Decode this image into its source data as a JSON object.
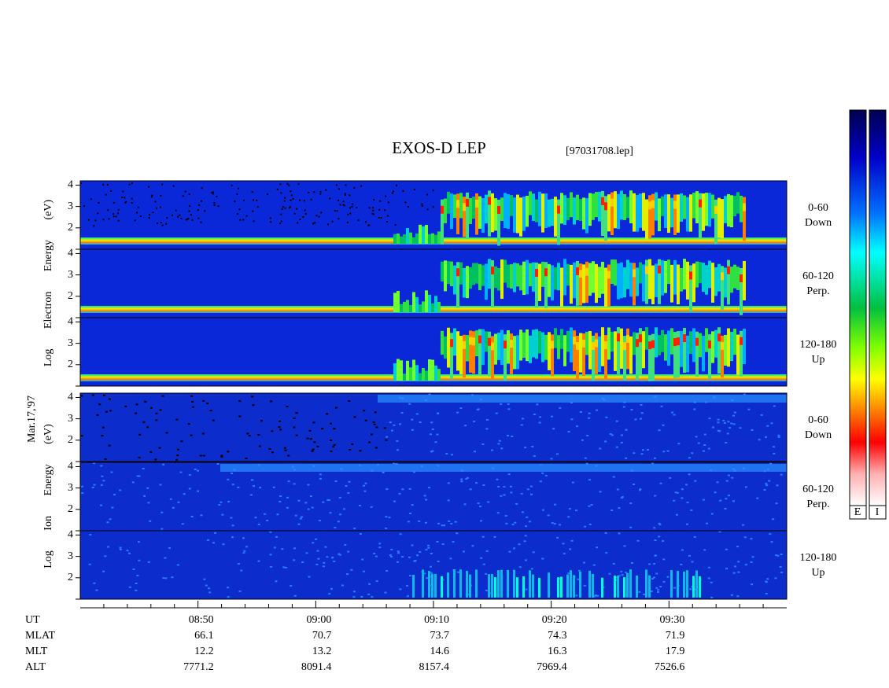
{
  "chart_data": {
    "type": "spectrogram",
    "title": "EXOS-D LEP",
    "file": "[97031708.lep]",
    "date": "Mar.17,'97",
    "electron_axis_label": "Log Electron Energy (eV)",
    "ion_axis_label": "Log Ion Energy (eV)",
    "ylim": [
      1,
      4.2
    ],
    "yticks": [
      2,
      3,
      4
    ],
    "xlim": [
      520,
      580
    ],
    "xticks": [
      {
        "value": 530,
        "label": "08:50"
      },
      {
        "value": 540,
        "label": "09:00"
      },
      {
        "value": 550,
        "label": "09:10"
      },
      {
        "value": 560,
        "label": "09:20"
      },
      {
        "value": 570,
        "label": "09:30"
      }
    ],
    "x_minor_ticks": [
      522,
      524,
      526,
      528,
      532,
      534,
      536,
      538,
      542,
      544,
      546,
      548,
      552,
      554,
      556,
      558,
      562,
      564,
      566,
      568,
      572,
      574,
      576,
      578
    ],
    "panels": [
      {
        "species": "electron",
        "pitch": "0-60",
        "direction": "Down"
      },
      {
        "species": "electron",
        "pitch": "60-120",
        "direction": "Perp."
      },
      {
        "species": "electron",
        "pitch": "120-180",
        "direction": "Up"
      },
      {
        "species": "ion",
        "pitch": "0-60",
        "direction": "Down"
      },
      {
        "species": "ion",
        "pitch": "60-120",
        "direction": "Perp."
      },
      {
        "species": "ion",
        "pitch": "120-180",
        "direction": "Up"
      }
    ],
    "ut_label": "UT",
    "orbit": [
      {
        "label": "MLAT",
        "values": [
          66.1,
          70.7,
          73.7,
          74.3,
          71.9
        ]
      },
      {
        "label": "MLT",
        "values": [
          12.2,
          13.2,
          14.6,
          16.3,
          17.9
        ]
      },
      {
        "label": "ALT",
        "values": [
          7771.2,
          8091.4,
          8157.4,
          7969.4,
          7526.6
        ]
      }
    ],
    "colorbar_labels": [
      "E",
      "I"
    ]
  }
}
